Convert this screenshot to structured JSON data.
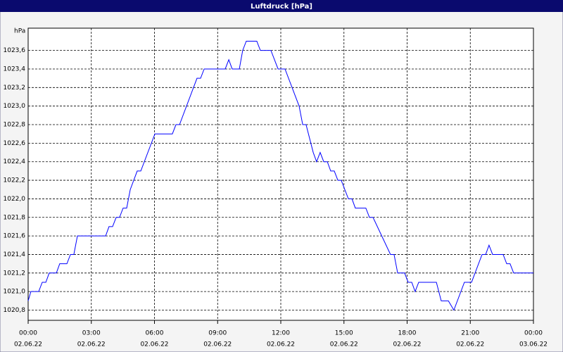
{
  "chart_data": {
    "type": "line",
    "title": "Luftdruck [hPa]",
    "y_label": "hPa",
    "xlim": [
      0,
      24
    ],
    "ylim": [
      1020.69,
      1023.84
    ],
    "xticks": [
      {
        "value": 0,
        "label": "00:00"
      },
      {
        "value": 3,
        "label": "03:00"
      },
      {
        "value": 6,
        "label": "06:00"
      },
      {
        "value": 9,
        "label": "09:00"
      },
      {
        "value": 12,
        "label": "12:00"
      },
      {
        "value": 15,
        "label": "15:00"
      },
      {
        "value": 18,
        "label": "18:00"
      },
      {
        "value": 21,
        "label": "21:00"
      },
      {
        "value": 24,
        "label": "00:00"
      }
    ],
    "xtick_dates": [
      "02.06.22",
      "02.06.22",
      "02.06.22",
      "02.06.22",
      "02.06.22",
      "02.06.22",
      "02.06.22",
      "02.06.22",
      "03.06.22"
    ],
    "yticks": [
      {
        "value": 1020.8,
        "label": "1020,8"
      },
      {
        "value": 1021.0,
        "label": "1021,0"
      },
      {
        "value": 1021.2,
        "label": "1021,2"
      },
      {
        "value": 1021.4,
        "label": "1021,4"
      },
      {
        "value": 1021.6,
        "label": "1021,6"
      },
      {
        "value": 1021.8,
        "label": "1021,8"
      },
      {
        "value": 1022.0,
        "label": "1022,0"
      },
      {
        "value": 1022.2,
        "label": "1022,2"
      },
      {
        "value": 1022.4,
        "label": "1022,4"
      },
      {
        "value": 1022.6,
        "label": "1022,6"
      },
      {
        "value": 1022.8,
        "label": "1022,8"
      },
      {
        "value": 1023.0,
        "label": "1023,0"
      },
      {
        "value": 1023.2,
        "label": "1023,2"
      },
      {
        "value": 1023.4,
        "label": "1023,4"
      },
      {
        "value": 1023.6,
        "label": "1023,6"
      }
    ],
    "grid": true,
    "series": [
      {
        "color": "#0000ff",
        "x": [
          0,
          0.13,
          0.5,
          0.67,
          0.84,
          1.0,
          1.34,
          1.5,
          1.84,
          2.01,
          2.17,
          2.34,
          3.68,
          3.84,
          4.01,
          4.18,
          4.34,
          4.51,
          4.68,
          4.85,
          5.18,
          5.35,
          6.02,
          6.85,
          7.02,
          7.19,
          8.02,
          8.19,
          8.36,
          9.36,
          9.53,
          9.69,
          10.03,
          10.19,
          10.36,
          10.86,
          11.03,
          11.53,
          11.87,
          12.2,
          12.87,
          13.04,
          13.2,
          13.54,
          13.7,
          13.87,
          14.04,
          14.21,
          14.37,
          14.54,
          14.71,
          14.87,
          15.21,
          15.38,
          15.54,
          16.04,
          16.21,
          16.38,
          17.21,
          17.38,
          17.55,
          17.88,
          18.05,
          18.22,
          18.38,
          18.55,
          19.39,
          19.62,
          19.96,
          20.22,
          20.72,
          21.06,
          21.56,
          21.73,
          21.89,
          22.06,
          22.56,
          22.73,
          22.89,
          23.06,
          24
        ],
        "values": [
          1020.9,
          1021.0,
          1021.0,
          1021.1,
          1021.1,
          1021.2,
          1021.2,
          1021.3,
          1021.3,
          1021.4,
          1021.4,
          1021.6,
          1021.6,
          1021.7,
          1021.7,
          1021.8,
          1021.8,
          1021.9,
          1021.9,
          1022.1,
          1022.3,
          1022.3,
          1022.7,
          1022.7,
          1022.8,
          1022.8,
          1023.3,
          1023.3,
          1023.4,
          1023.4,
          1023.5,
          1023.4,
          1023.4,
          1023.6,
          1023.7,
          1023.7,
          1023.6,
          1023.6,
          1023.4,
          1023.4,
          1023.0,
          1022.8,
          1022.8,
          1022.5,
          1022.4,
          1022.5,
          1022.4,
          1022.4,
          1022.3,
          1022.3,
          1022.2,
          1022.2,
          1022.0,
          1022.0,
          1021.9,
          1021.9,
          1021.8,
          1021.8,
          1021.4,
          1021.4,
          1021.2,
          1021.2,
          1021.1,
          1021.1,
          1021.0,
          1021.1,
          1021.1,
          1020.9,
          1020.9,
          1020.8,
          1021.1,
          1021.1,
          1021.4,
          1021.4,
          1021.5,
          1021.4,
          1021.4,
          1021.3,
          1021.3,
          1021.2,
          1021.2
        ]
      }
    ]
  }
}
